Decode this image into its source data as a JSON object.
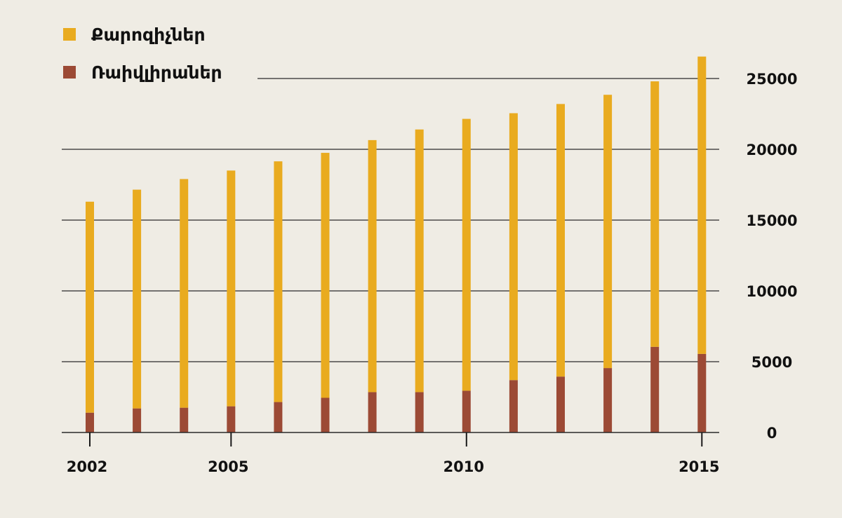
{
  "chart_data": {
    "type": "bar",
    "stacked": true,
    "x": [
      2002,
      2003,
      2004,
      2005,
      2006,
      2007,
      2008,
      2009,
      2010,
      2011,
      2012,
      2013,
      2014,
      2015
    ],
    "x_tick_labels": [
      "2002",
      "2005",
      "2010",
      "2015"
    ],
    "series": [
      {
        "name": "Ռաիվլիրաներ",
        "color": "#9c4a35",
        "values": [
          1400,
          1700,
          1750,
          1850,
          2150,
          2450,
          2850,
          2850,
          2950,
          3700,
          3950,
          4550,
          6050,
          5550
        ]
      },
      {
        "name": "Քարոզիչներ",
        "color": "#e9ab1f",
        "values": [
          14900,
          15450,
          16150,
          16650,
          17000,
          17300,
          17800,
          18550,
          19200,
          18850,
          19250,
          19300,
          18750,
          21000
        ]
      }
    ],
    "y_axis_side": "right",
    "ylim": [
      0,
      27500
    ],
    "y_ticks": [
      0,
      5000,
      10000,
      15000,
      20000,
      25000
    ],
    "y_tick_labels": [
      "0",
      "5000",
      "10000",
      "15000",
      "20000",
      "25000"
    ],
    "grid": true,
    "legend_position": "top-left",
    "title": "",
    "xlabel": "",
    "ylabel": ""
  }
}
